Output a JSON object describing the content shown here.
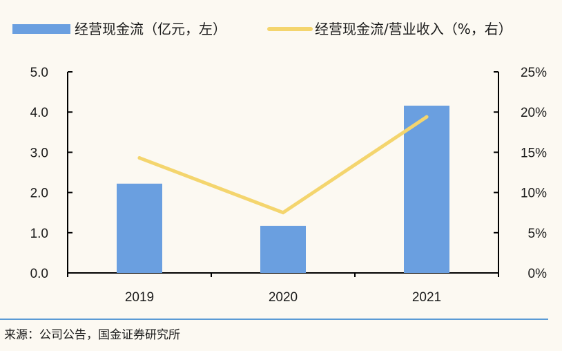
{
  "chart_data": {
    "type": "bar+line",
    "categories": [
      "2019",
      "2020",
      "2021"
    ],
    "series": [
      {
        "name": "经营现金流（亿元，左）",
        "type": "bar",
        "axis": "left",
        "values": [
          2.22,
          1.17,
          4.16
        ],
        "color": "#6a9fe0"
      },
      {
        "name": "经营现金流/营业收入（%，右）",
        "type": "line",
        "axis": "right",
        "values": [
          14.3,
          7.5,
          19.4
        ],
        "color": "#f4d56e"
      }
    ],
    "left_axis": {
      "ylim": [
        0,
        5
      ],
      "ticks": [
        "0.0",
        "1.0",
        "2.0",
        "3.0",
        "4.0",
        "5.0"
      ]
    },
    "right_axis": {
      "ylim": [
        0,
        25
      ],
      "ticks": [
        "0%",
        "5%",
        "10%",
        "15%",
        "20%",
        "25%"
      ]
    },
    "grid": false,
    "legend_position": "top"
  },
  "source": "来源：公司公告，国金证券研究所"
}
